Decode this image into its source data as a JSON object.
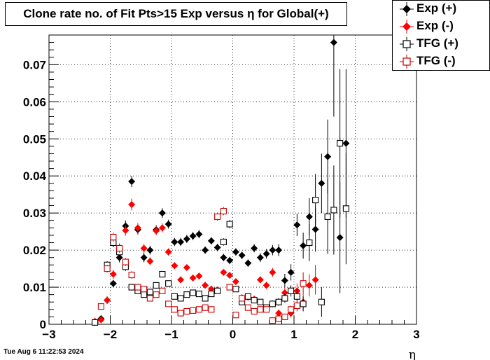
{
  "title": "Clone rate no. of Fit Pts>15 Exp versus η for Global(+)",
  "timestamp": "Tue Aug  6 11:22:53 2024",
  "legend": [
    {
      "label": "Exp (+)",
      "color": "#000000",
      "marker": "diamond-filled"
    },
    {
      "label": "Exp (-)",
      "color": "#ff0000",
      "marker": "diamond-filled"
    },
    {
      "label": "TFG (+)",
      "color": "#000000",
      "marker": "square-open"
    },
    {
      "label": "TFG (-)",
      "color": "#cc0000",
      "marker": "square-open"
    }
  ],
  "chart_data": {
    "type": "scatter",
    "title": "Clone rate no. of Fit Pts>15 Exp versus η for Global(+)",
    "xlabel": "η",
    "ylabel": "",
    "xlim": [
      -3,
      3
    ],
    "ylim": [
      0,
      0.078
    ],
    "xticks": [
      "−3",
      "−2",
      "−1",
      "0",
      "1",
      "2",
      "3"
    ],
    "yticks": [
      "0",
      "0.01",
      "0.02",
      "0.03",
      "0.04",
      "0.05",
      "0.06",
      "0.07"
    ],
    "grid": true,
    "legend_position": "top-right",
    "series": [
      {
        "name": "Exp (+)",
        "color": "#000000",
        "marker": "diamond-filled",
        "points": [
          [
            -2.25,
            0.0005,
            0.0003
          ],
          [
            -2.15,
            0.0015,
            0.0005
          ],
          [
            -2.05,
            0.0065,
            0.001
          ],
          [
            -1.95,
            0.011,
            0.001
          ],
          [
            -1.85,
            0.018,
            0.0013
          ],
          [
            -1.75,
            0.0265,
            0.0015
          ],
          [
            -1.65,
            0.0385,
            0.0015
          ],
          [
            -1.55,
            0.0255,
            0.0013
          ],
          [
            -1.45,
            0.018,
            0.0013
          ],
          [
            -1.35,
            0.02,
            0.0012
          ],
          [
            -1.25,
            0.0255,
            0.0012
          ],
          [
            -1.15,
            0.03,
            0.0013
          ],
          [
            -1.05,
            0.027,
            0.0012
          ],
          [
            -0.95,
            0.0222,
            0.0011
          ],
          [
            -0.85,
            0.0222,
            0.0011
          ],
          [
            -0.75,
            0.023,
            0.0011
          ],
          [
            -0.65,
            0.0238,
            0.0011
          ],
          [
            -0.55,
            0.0243,
            0.0011
          ],
          [
            -0.45,
            0.02,
            0.001
          ],
          [
            -0.35,
            0.0225,
            0.001
          ],
          [
            -0.25,
            0.0207,
            0.001
          ],
          [
            -0.15,
            0.018,
            0.001
          ],
          [
            -0.05,
            0.0172,
            0.001
          ],
          [
            0.05,
            0.0195,
            0.001
          ],
          [
            0.15,
            0.0186,
            0.001
          ],
          [
            0.25,
            0.0165,
            0.001
          ],
          [
            0.35,
            0.0205,
            0.0011
          ],
          [
            0.45,
            0.018,
            0.0012
          ],
          [
            0.55,
            0.019,
            0.0013
          ],
          [
            0.65,
            0.02,
            0.0014
          ],
          [
            0.75,
            0.02,
            0.0016
          ],
          [
            0.85,
            0.0118,
            0.0018
          ],
          [
            0.95,
            0.014,
            0.0022
          ],
          [
            1.05,
            0.0268,
            0.003
          ],
          [
            1.15,
            0.0212,
            0.0035
          ],
          [
            1.25,
            0.029,
            0.005
          ],
          [
            1.35,
            0.0256,
            0.006
          ],
          [
            1.45,
            0.038,
            0.008
          ],
          [
            1.55,
            0.0452,
            0.01
          ],
          [
            1.65,
            0.076,
            0.02
          ],
          [
            1.75,
            0.0234,
            0.015
          ],
          [
            1.85,
            0.0488,
            0.02
          ]
        ]
      },
      {
        "name": "Exp (-)",
        "color": "#ff0000",
        "marker": "diamond-filled",
        "points": [
          [
            -2.25,
            0.0008,
            0.0003
          ],
          [
            -2.15,
            0.0012,
            0.0005
          ],
          [
            -2.05,
            0.0065,
            0.001
          ],
          [
            -1.95,
            0.0135,
            0.0012
          ],
          [
            -1.85,
            0.0205,
            0.0013
          ],
          [
            -1.75,
            0.0253,
            0.0014
          ],
          [
            -1.65,
            0.0323,
            0.0016
          ],
          [
            -1.55,
            0.026,
            0.0013
          ],
          [
            -1.45,
            0.0205,
            0.0012
          ],
          [
            -1.35,
            0.017,
            0.0011
          ],
          [
            -1.25,
            0.0252,
            0.0012
          ],
          [
            -1.15,
            0.026,
            0.0012
          ],
          [
            -1.05,
            0.0195,
            0.001
          ],
          [
            -0.95,
            0.0158,
            0.0009
          ],
          [
            -0.85,
            0.012,
            0.0008
          ],
          [
            -0.75,
            0.0153,
            0.0008
          ],
          [
            -0.65,
            0.0125,
            0.0008
          ],
          [
            -0.55,
            0.013,
            0.0008
          ],
          [
            -0.45,
            0.0105,
            0.0007
          ],
          [
            -0.35,
            0.0095,
            0.0007
          ],
          [
            -0.25,
            0.0093,
            0.0007
          ],
          [
            -0.15,
            0.014,
            0.0008
          ],
          [
            -0.05,
            0.0132,
            0.0008
          ],
          [
            0.05,
            0.0115,
            0.0008
          ],
          [
            0.15,
            0.0072,
            0.0007
          ],
          [
            0.25,
            0.0073,
            0.0007
          ],
          [
            0.35,
            0.0068,
            0.0007
          ],
          [
            0.45,
            0.012,
            0.0009
          ],
          [
            0.55,
            0.0105,
            0.001
          ],
          [
            0.65,
            0.014,
            0.0012
          ],
          [
            0.75,
            0.003,
            0.001
          ],
          [
            0.85,
            0.0085,
            0.0015
          ],
          [
            0.95,
            0.003,
            0.0012
          ],
          [
            1.05,
            0.009,
            0.002
          ],
          [
            1.15,
            0.006,
            0.002
          ],
          [
            1.25,
            0.0105,
            0.003
          ],
          [
            1.35,
            0.012,
            0.004
          ]
        ]
      },
      {
        "name": "TFG (+)",
        "color": "#000000",
        "marker": "square-open",
        "points": [
          [
            -2.25,
            0.0005,
            0.0003
          ],
          [
            -2.05,
            0.016,
            0.001
          ],
          [
            -1.95,
            0.022,
            0.0012
          ],
          [
            -1.85,
            0.0195,
            0.0012
          ],
          [
            -1.75,
            0.0155,
            0.0011
          ],
          [
            -1.65,
            0.01,
            0.0009
          ],
          [
            -1.55,
            0.009,
            0.0008
          ],
          [
            -1.45,
            0.008,
            0.0008
          ],
          [
            -1.35,
            0.0087,
            0.0008
          ],
          [
            -1.25,
            0.0105,
            0.0008
          ],
          [
            -1.15,
            0.0135,
            0.0009
          ],
          [
            -1.05,
            0.011,
            0.0008
          ],
          [
            -0.95,
            0.0075,
            0.0007
          ],
          [
            -0.85,
            0.007,
            0.0007
          ],
          [
            -0.75,
            0.008,
            0.0007
          ],
          [
            -0.65,
            0.0085,
            0.0007
          ],
          [
            -0.55,
            0.0082,
            0.0007
          ],
          [
            -0.45,
            0.007,
            0.0007
          ],
          [
            -0.35,
            0.0082,
            0.0007
          ],
          [
            -0.25,
            0.009,
            0.0007
          ],
          [
            -0.15,
            0.0222,
            0.001
          ],
          [
            -0.05,
            0.027,
            0.0011
          ],
          [
            0.05,
            0.0095,
            0.0008
          ],
          [
            0.15,
            0.006,
            0.0007
          ],
          [
            0.25,
            0.0075,
            0.0007
          ],
          [
            0.35,
            0.0065,
            0.0007
          ],
          [
            0.45,
            0.006,
            0.0008
          ],
          [
            0.55,
            0.0045,
            0.0008
          ],
          [
            0.65,
            0.0055,
            0.0009
          ],
          [
            0.75,
            0.006,
            0.001
          ],
          [
            0.85,
            0.007,
            0.0012
          ],
          [
            0.95,
            0.009,
            0.0015
          ],
          [
            1.05,
            0.0075,
            0.002
          ],
          [
            1.15,
            0.0055,
            0.002
          ],
          [
            1.25,
            0.022,
            0.005
          ],
          [
            1.35,
            0.0335,
            0.007
          ],
          [
            1.45,
            0.006,
            0.004
          ],
          [
            1.55,
            0.029,
            0.01
          ],
          [
            1.65,
            0.0308,
            0.012
          ],
          [
            1.75,
            0.0488,
            0.02
          ],
          [
            1.85,
            0.0312,
            0.015
          ]
        ]
      },
      {
        "name": "TFG (-)",
        "color": "#cc0000",
        "marker": "square-open",
        "points": [
          [
            -2.15,
            0.0048,
            0.0008
          ],
          [
            -2.05,
            0.015,
            0.001
          ],
          [
            -1.95,
            0.0235,
            0.0012
          ],
          [
            -1.85,
            0.0205,
            0.0012
          ],
          [
            -1.75,
            0.0168,
            0.0011
          ],
          [
            -1.65,
            0.0133,
            0.001
          ],
          [
            -1.55,
            0.01,
            0.0009
          ],
          [
            -1.45,
            0.0095,
            0.0008
          ],
          [
            -1.35,
            0.007,
            0.0007
          ],
          [
            -1.25,
            0.008,
            0.0007
          ],
          [
            -1.15,
            0.009,
            0.0007
          ],
          [
            -1.05,
            0.0055,
            0.0006
          ],
          [
            -0.95,
            0.004,
            0.0006
          ],
          [
            -0.85,
            0.003,
            0.0006
          ],
          [
            -0.75,
            0.0035,
            0.0006
          ],
          [
            -0.65,
            0.0037,
            0.0006
          ],
          [
            -0.55,
            0.004,
            0.0006
          ],
          [
            -0.45,
            0.0045,
            0.0006
          ],
          [
            -0.35,
            0.004,
            0.0006
          ],
          [
            -0.25,
            0.029,
            0.0011
          ],
          [
            -0.15,
            0.0305,
            0.0011
          ],
          [
            -0.05,
            0.01,
            0.0008
          ],
          [
            0.05,
            0.0025,
            0.0005
          ],
          [
            0.15,
            0.007,
            0.0007
          ],
          [
            0.25,
            0.0045,
            0.0006
          ],
          [
            0.35,
            0.0035,
            0.0006
          ],
          [
            0.45,
            0.004,
            0.0007
          ],
          [
            0.55,
            0.004,
            0.0008
          ],
          [
            0.65,
            0.001,
            0.0005
          ],
          [
            0.75,
            0.0015,
            0.0006
          ],
          [
            0.85,
            0.002,
            0.0008
          ],
          [
            0.95,
            0.004,
            0.001
          ],
          [
            1.05,
            0.005,
            0.0015
          ],
          [
            1.15,
            0.011,
            0.003
          ]
        ]
      }
    ]
  }
}
